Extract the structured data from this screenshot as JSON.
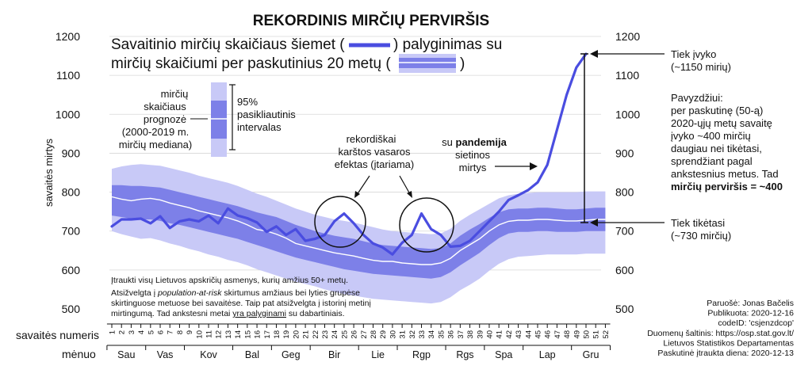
{
  "chart_data": {
    "type": "line",
    "title": "REKORDINIS MIRČIŲ PERVIRŠIS",
    "subtitle_line1": "Savaitinio mirčių skaičiaus šiemet (",
    "subtitle_line1_end": ") palyginimas su",
    "subtitle_line2": "mirčių skaičiumi per paskutinius 20 metų (",
    "subtitle_line2_end": ")",
    "ylabel": "savaitės mirtys",
    "ylim": [
      500,
      1200
    ],
    "yticks": [
      500,
      600,
      700,
      800,
      900,
      1000,
      1100,
      1200
    ],
    "grid": true,
    "xlabel_weeks": "savaitės numeris",
    "xlabel_months": "mėnuo",
    "weeks": [
      1,
      2,
      3,
      4,
      5,
      6,
      7,
      8,
      9,
      10,
      11,
      12,
      13,
      14,
      15,
      16,
      17,
      18,
      19,
      20,
      21,
      22,
      23,
      24,
      25,
      26,
      27,
      28,
      29,
      30,
      31,
      32,
      33,
      34,
      35,
      36,
      37,
      38,
      39,
      40,
      41,
      42,
      43,
      44,
      45,
      46,
      47,
      48,
      49,
      50,
      51,
      52
    ],
    "months": [
      "Sau",
      "Vas",
      "Kov",
      "Bal",
      "Geg",
      "Bir",
      "Lie",
      "Rgp",
      "Rgs",
      "Spa",
      "Lap",
      "Gru"
    ],
    "month_start_weeks": [
      1,
      5,
      9,
      14,
      18,
      22,
      27,
      31,
      36,
      40,
      44,
      49,
      53
    ],
    "series_2020": {
      "weeks": [
        1,
        2,
        3,
        4,
        5,
        6,
        7,
        8,
        9,
        10,
        11,
        12,
        13,
        14,
        15,
        16,
        17,
        18,
        19,
        20,
        21,
        22,
        23,
        24,
        25,
        26,
        27,
        28,
        29,
        30,
        31,
        32,
        33,
        34,
        35,
        36,
        37,
        38,
        39,
        40,
        41,
        42,
        43,
        44,
        45,
        46,
        47,
        48,
        49,
        50
      ],
      "values": [
        712,
        730,
        730,
        732,
        720,
        738,
        708,
        725,
        730,
        725,
        740,
        720,
        758,
        740,
        733,
        722,
        698,
        712,
        690,
        705,
        675,
        680,
        690,
        725,
        745,
        720,
        690,
        668,
        658,
        640,
        670,
        690,
        745,
        705,
        690,
        660,
        662,
        675,
        700,
        725,
        750,
        780,
        792,
        805,
        825,
        870,
        960,
        1050,
        1120,
        1155
      ],
      "color": "#4a4de0"
    },
    "median_2000_2019": [
      788,
      782,
      778,
      782,
      784,
      780,
      772,
      766,
      760,
      752,
      746,
      740,
      734,
      726,
      716,
      704,
      700,
      692,
      682,
      668,
      662,
      656,
      650,
      644,
      640,
      636,
      630,
      625,
      622,
      622,
      618,
      616,
      614,
      614,
      618,
      630,
      650,
      665,
      680,
      700,
      716,
      725,
      728,
      728,
      730,
      730,
      728,
      726,
      726,
      728,
      730,
      730
    ],
    "ci_inner_lower": [
      740,
      736,
      732,
      730,
      730,
      726,
      720,
      716,
      710,
      704,
      698,
      692,
      686,
      680,
      672,
      664,
      656,
      648,
      640,
      632,
      626,
      620,
      614,
      608,
      602,
      598,
      594,
      590,
      588,
      586,
      584,
      582,
      580,
      578,
      582,
      594,
      612,
      628,
      644,
      664,
      682,
      694,
      698,
      698,
      700,
      700,
      698,
      698,
      698,
      700,
      700,
      700
    ],
    "ci_inner_upper": [
      818,
      818,
      816,
      816,
      814,
      812,
      806,
      800,
      794,
      788,
      782,
      776,
      770,
      764,
      756,
      748,
      742,
      736,
      726,
      716,
      708,
      700,
      694,
      688,
      684,
      680,
      674,
      668,
      664,
      662,
      660,
      658,
      656,
      654,
      656,
      668,
      688,
      704,
      718,
      734,
      748,
      756,
      758,
      758,
      760,
      760,
      758,
      756,
      756,
      758,
      760,
      760
    ],
    "ci_outer_lower": [
      700,
      692,
      686,
      680,
      682,
      676,
      668,
      662,
      654,
      648,
      640,
      634,
      626,
      620,
      612,
      602,
      594,
      586,
      578,
      570,
      564,
      558,
      550,
      544,
      538,
      534,
      530,
      526,
      524,
      522,
      520,
      518,
      516,
      514,
      518,
      530,
      548,
      562,
      578,
      598,
      616,
      628,
      634,
      636,
      638,
      640,
      640,
      640,
      640,
      642,
      642,
      642
    ],
    "ci_outer_upper": [
      860,
      866,
      870,
      872,
      870,
      868,
      862,
      856,
      850,
      842,
      836,
      830,
      824,
      816,
      806,
      796,
      788,
      778,
      768,
      758,
      750,
      742,
      736,
      730,
      726,
      722,
      716,
      710,
      704,
      700,
      698,
      696,
      694,
      692,
      694,
      706,
      726,
      742,
      756,
      770,
      784,
      792,
      796,
      798,
      800,
      800,
      800,
      800,
      800,
      802,
      802,
      802
    ],
    "legend_95ci_label_lines": [
      "95%",
      "pasikliautinis",
      "intervalas"
    ],
    "legend_forecast_label_lines": [
      "mirčių",
      "skaičiaus",
      "prognozė",
      "(2000-2019 m.",
      "mirčių mediana)"
    ],
    "annotations": {
      "actual_label": [
        "Tiek įvyko",
        "(~1150 mirių)"
      ],
      "expected_label": [
        "Tiek tikėtasi",
        "(~730 mirčių)"
      ],
      "example_lines": [
        "Pavyzdžiui:",
        "per paskutinę (50-ą)",
        "2020-ųjų metų savaitę",
        "įvyko ~400 mirčių",
        "daugiau nei tikėtasi,",
        "sprendžiant pagal",
        "ankstesnius metus. Tad"
      ],
      "example_bold": "mirčių perviršis = ~400",
      "summer_effect": [
        "rekordiškai",
        "karštos vasaros",
        "efektas (įtariama)"
      ],
      "pandemic_pre": "su ",
      "pandemic_bold": "pandemija",
      "pandemic_rest": [
        "sietinos",
        "mirtys"
      ],
      "note_line1": "Įtraukti visų Lietuvos apskričių asmenys, kurių amžius 50+ metų.",
      "note_line2_pre": "Atsižvelgta į ",
      "note_line2_italic": "population-at-risk",
      "note_line2_post": " skirtumus amžiaus bei lyties grupėse",
      "note_line3": "skirtinguose metuose bei savaitėse. Taip pat atsižvelgta į istorinį metinį",
      "note_line4_pre": "mirtingumą. Tad ankstesni metai ",
      "note_line4_underline": "yra palyginami",
      "note_line4_post": " su dabartiniais."
    },
    "credits": [
      "Paruošė: Jonas Bačelis",
      "Publikuota: 2020-12-16",
      "codeID: 'csjenzdcop'",
      "Duomenų šaltinis: https://osp.stat.gov.lt/",
      "Lietuvos Statistikos Departamentas",
      "Paskutinė įtraukta diena: 2020-12-13"
    ],
    "colors": {
      "line": "#4a4de0",
      "ci_outer": "#c8c9f7",
      "ci_inner": "#7d80e8",
      "median": "#ffffff"
    }
  }
}
